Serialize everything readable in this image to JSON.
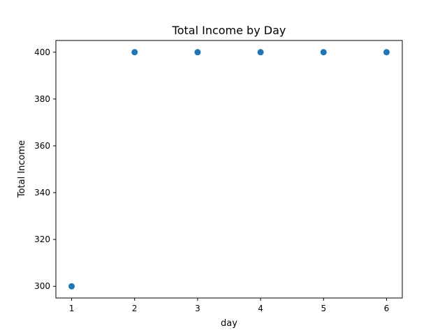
{
  "chart_data": {
    "type": "scatter",
    "title": "Total Income by Day",
    "xlabel": "day",
    "ylabel": "Total Income",
    "x": [
      1,
      2,
      3,
      4,
      5,
      6
    ],
    "series": [
      {
        "values": [
          300,
          400,
          400,
          400,
          400,
          400
        ]
      }
    ],
    "xlim": [
      0.75,
      6.25
    ],
    "ylim": [
      295,
      405
    ],
    "xticks": [
      1,
      2,
      3,
      4,
      5,
      6
    ],
    "yticks": [
      300,
      320,
      340,
      360,
      380,
      400
    ],
    "grid": false,
    "marker_color": "#1f77b4"
  }
}
